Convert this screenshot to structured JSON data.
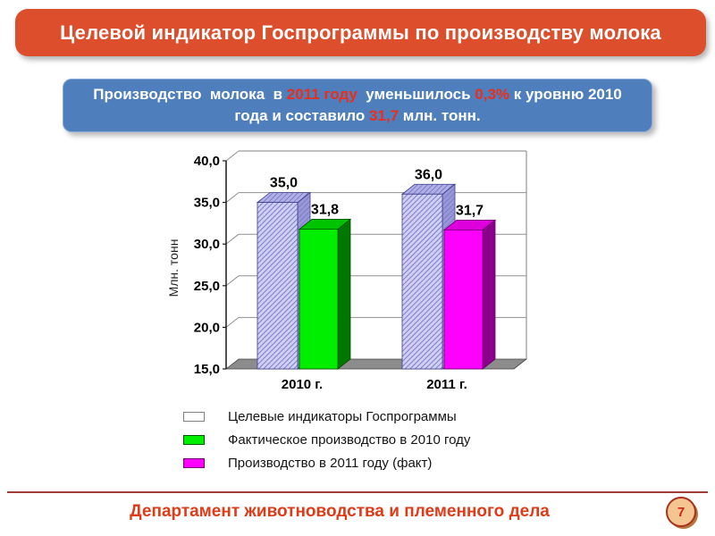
{
  "header": {
    "title": "Целевой индикатор Госпрограммы по производству молока"
  },
  "infobox": {
    "lines": [
      [
        {
          "t": "Производство  молока  в ",
          "hl": false
        },
        {
          "t": "2011 году",
          "hl": true
        },
        {
          "t": "  уменьшилось ",
          "hl": false
        },
        {
          "t": "0,3%",
          "hl": true
        },
        {
          "t": " к уровню 2010",
          "hl": false
        }
      ],
      [
        {
          "t": "года и составило ",
          "hl": false
        },
        {
          "t": "31,7",
          "hl": true
        },
        {
          "t": " млн. тонн.",
          "hl": false
        }
      ]
    ]
  },
  "chart_data": {
    "type": "bar",
    "variant": "3d-clustered-column",
    "title": "",
    "categories": [
      "2010 г.",
      "2011 г."
    ],
    "series": [
      {
        "name": "Целевые индикаторы Госпрограммы",
        "values": [
          35.0,
          36.0
        ],
        "labels": [
          "35,0",
          "36,0"
        ],
        "hatch": true,
        "color_front": "#cfcff4",
        "color_top": "#b0b0e6",
        "color_side": "#9898d8",
        "hatch_line": "#7d7dc8",
        "outline": "#3c3c8c",
        "swatch_fill": "#ffffff",
        "swatch_border": "#808080"
      },
      {
        "name": "Фактическое производство в 2010 году",
        "values": [
          31.8,
          null
        ],
        "labels": [
          "31,8",
          null
        ],
        "hatch": false,
        "color_front": "#00ee00",
        "color_top": "#00c400",
        "color_side": "#007800",
        "outline": "#004d00",
        "swatch_fill": "#00ee00",
        "swatch_border": "#005500"
      },
      {
        "name": "Производство в 2011 году (факт)",
        "values": [
          null,
          31.7
        ],
        "labels": [
          null,
          "31,7"
        ],
        "hatch": false,
        "color_front": "#ff00ff",
        "color_top": "#dd00dd",
        "color_side": "#8b008b",
        "outline": "#6a006a",
        "swatch_fill": "#ff00ff",
        "swatch_border": "#770077"
      }
    ],
    "ylabel": "Млн. тонн",
    "ylim": [
      15,
      40
    ],
    "ytick_step": 5,
    "ytick_labels": [
      "15,0",
      "20,0",
      "25,0",
      "30,0",
      "35,0",
      "40,0"
    ],
    "grid": true,
    "legend_position": "bottom-left",
    "chart_colors": {
      "grid": "#909090",
      "axis": "#1a1a1a",
      "floor": "#8c8c8c",
      "wall_edge": "#808080",
      "label": "#000000"
    }
  },
  "footer": {
    "department": "Департамент животноводства и племенного дела",
    "page": "7"
  },
  "colors": {
    "banner": "#dc4e2c",
    "infobox_bg": "#4e7fbc",
    "highlight": "#ee2c18",
    "footer_text": "#e03a17",
    "divider": "#a03b35",
    "badge_fill": "#f4c491",
    "badge_border": "#a8321e"
  }
}
